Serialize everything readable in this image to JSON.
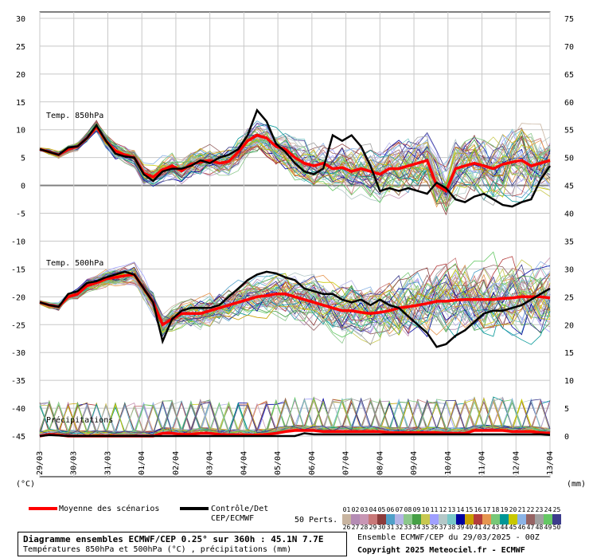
{
  "chart_data": {
    "type": "line",
    "title": "Diagramme ensembles ECMWF/CEP 0.25° sur 360h : 45.1N 7.7E",
    "subtitle": "Températures 850hPa et 500hPa (°C) , précipitations (mm)",
    "y_left_label": "(°C)",
    "y_right_label": "(mm)",
    "y_left_ticks": [
      "30",
      "25",
      "20",
      "15",
      "10",
      "5",
      "0",
      "-5",
      "-10",
      "-15",
      "-20",
      "-25",
      "-30",
      "-35",
      "-40",
      "-45"
    ],
    "y_right_ticks": [
      "75",
      "70",
      "65",
      "60",
      "55",
      "50",
      "45",
      "40",
      "35",
      "30",
      "25",
      "20",
      "15",
      "10",
      "5",
      "0"
    ],
    "y_left_range": [
      -45,
      30
    ],
    "y_right_range": [
      0,
      75
    ],
    "x_dates": [
      "29/03",
      "30/03",
      "31/03",
      "01/04",
      "02/04",
      "03/04",
      "04/04",
      "05/04",
      "06/04",
      "07/04",
      "08/04",
      "09/04",
      "10/04",
      "11/04",
      "12/04",
      "13/04"
    ],
    "panels": {
      "t850": "Temp. 850hPa",
      "t500": "Temp. 500hPa",
      "precip": "Précipitations"
    },
    "series": [
      {
        "name": "Moyenne des scénarios",
        "color": "#ff0000",
        "t850": [
          6.5,
          6,
          5.5,
          6.5,
          7,
          8.5,
          10.5,
          8,
          6.2,
          5.5,
          5,
          2.2,
          1.5,
          2.8,
          3.5,
          2.6,
          3.8,
          4.2,
          4.5,
          4,
          4.3,
          6,
          8,
          9,
          8.5,
          7,
          6.5,
          5,
          4,
          3.5,
          4,
          3,
          3.2,
          2.5,
          3,
          2.5,
          2,
          3,
          3,
          3.5,
          4,
          4.5,
          0,
          -1,
          3,
          3.5,
          4,
          3.5,
          3,
          3.8,
          4.2,
          4.5,
          3.5,
          4,
          4.5
        ],
        "t500": [
          -21,
          -21.5,
          -21.8,
          -20,
          -19.5,
          -18,
          -17.5,
          -16.8,
          -16.5,
          -16.2,
          -16,
          -18.5,
          -21,
          -25,
          -24,
          -23,
          -23,
          -23,
          -22.5,
          -22,
          -21.5,
          -21,
          -20.5,
          -20,
          -19.8,
          -19.5,
          -19.5,
          -20,
          -20.5,
          -21,
          -21.5,
          -22,
          -22.5,
          -22.5,
          -22.8,
          -23,
          -22.8,
          -22.5,
          -22,
          -21.8,
          -21.5,
          -21.2,
          -20.8,
          -20.8,
          -20.6,
          -20.5,
          -20.5,
          -20.5,
          -20.5,
          -20.3,
          -20.2,
          -20,
          -20,
          -20,
          -20.2
        ],
        "precip": [
          0,
          0.3,
          0.2,
          0,
          0,
          0,
          0,
          0,
          0,
          0,
          0,
          0,
          0,
          0.5,
          0.5,
          0.3,
          0.3,
          0.5,
          0.5,
          0.3,
          0.2,
          0.2,
          0.2,
          0.2,
          0.3,
          0.5,
          0.8,
          1,
          1,
          1,
          0.8,
          0.8,
          0.8,
          0.8,
          0.8,
          0.8,
          0.8,
          0.6,
          0.6,
          0.6,
          0.6,
          0.6,
          0.6,
          0.5,
          0.5,
          0.5,
          1,
          1,
          1,
          1,
          0.8,
          0.8,
          0.8,
          0.6,
          0.5
        ]
      },
      {
        "name": "Contrôle/Det CEP/ECMWF",
        "color": "#000000",
        "t850": [
          6.5,
          6,
          5.5,
          6.8,
          7,
          8.5,
          10.8,
          8,
          5.7,
          5.2,
          5,
          2,
          0.8,
          2.5,
          3,
          3,
          3.5,
          4.5,
          4,
          5,
          5.5,
          6.5,
          9,
          13.5,
          11.5,
          7.5,
          6,
          4,
          2.5,
          2,
          3,
          9,
          8,
          9,
          7,
          3.5,
          -1,
          -0.5,
          -1,
          -0.5,
          -1,
          -1.5,
          0.5,
          -0.5,
          -2.5,
          -3,
          -2,
          -1.5,
          -2.5,
          -3.5,
          -3.8,
          -3,
          -2.5,
          1,
          3.5
        ],
        "t500": [
          -21,
          -21.5,
          -21.8,
          -19.5,
          -19,
          -17.5,
          -17.2,
          -16.5,
          -16,
          -15.5,
          -16,
          -18.5,
          -21,
          -28,
          -24,
          -22.5,
          -22,
          -22,
          -22,
          -21.5,
          -20,
          -18.5,
          -17,
          -16,
          -15.5,
          -15.8,
          -16.5,
          -17,
          -18.5,
          -19,
          -19.5,
          -19.5,
          -20.5,
          -21,
          -20.5,
          -21.5,
          -20.5,
          -21.5,
          -22,
          -23.5,
          -25,
          -26.5,
          -29,
          -28.5,
          -27,
          -26,
          -24.5,
          -23,
          -22.5,
          -22.5,
          -22,
          -21.5,
          -20.5,
          -19.5,
          -18.5
        ],
        "precip": [
          0,
          0.2,
          0.1,
          0,
          0,
          0,
          0,
          0,
          0,
          0,
          0,
          0,
          0,
          0,
          0,
          0,
          0,
          0,
          0,
          0,
          0,
          0,
          0,
          0,
          0,
          0,
          0,
          0,
          0.5,
          0.3,
          0.3,
          0.3,
          0.3,
          0.3,
          0.3,
          0.3,
          0.3,
          0.3,
          0.3,
          0.3,
          0.3,
          0.3,
          0.3,
          0.3,
          0.3,
          0.3,
          0.3,
          0.3,
          0.3,
          0.3,
          0.3,
          0.3,
          0.3,
          0.3,
          0.2
        ]
      }
    ],
    "legend": {
      "mean": "Moyenne des scénarios",
      "control_line1": "Contrôle/Det",
      "control_line2": "CEP/ECMWF",
      "perts": "50 Perts.",
      "row1": [
        "01",
        "02",
        "03",
        "04",
        "05",
        "06",
        "07",
        "08",
        "09",
        "10",
        "11",
        "12",
        "13",
        "14",
        "15",
        "16",
        "17",
        "18",
        "19",
        "20",
        "21",
        "22",
        "23",
        "24",
        "25"
      ],
      "row2": [
        "26",
        "27",
        "28",
        "29",
        "30",
        "31",
        "32",
        "33",
        "34",
        "35",
        "36",
        "37",
        "38",
        "39",
        "40",
        "41",
        "42",
        "43",
        "44",
        "45",
        "46",
        "47",
        "48",
        "49",
        "50"
      ],
      "row1_colors": [
        "#c8b4a0",
        "#b48cb4",
        "#c896b4",
        "#c87878",
        "#8c3c3c",
        "#50a0c8",
        "#b4b4e6",
        "#8cc88c",
        "#46a046",
        "#c8c850",
        "#a0a0ff",
        "#b4c8c8",
        "#78c8c8",
        "#0000a0",
        "#c8a000",
        "#b43c3c",
        "#e69650",
        "#78c878",
        "#009696",
        "#c8c800",
        "#8cb4e6",
        "#966464",
        "#a0a0a0",
        "#64c864",
        "#3c3c8c"
      ],
      "row2_colors": [
        "#c8b4a0",
        "#b48cb4",
        "#c896b4",
        "#c87878",
        "#8c3c3c",
        "#50a0c8",
        "#b4b4e6",
        "#8cc88c",
        "#46a046",
        "#c8c850",
        "#a0a0ff",
        "#b4c8c8",
        "#78c8c8",
        "#0000a0",
        "#c8a000",
        "#b43c3c",
        "#e69650",
        "#78c878",
        "#009696",
        "#c8c800",
        "#8cb4e6",
        "#966464",
        "#a0a0a0",
        "#64c864",
        "#3c3c8c"
      ]
    },
    "footer_right1": "Ensemble ECMWF/CEP du 29/03/2025 - 00Z",
    "footer_right2": "Copyright 2025 Meteociel.fr - ECMWF",
    "grid": true
  }
}
